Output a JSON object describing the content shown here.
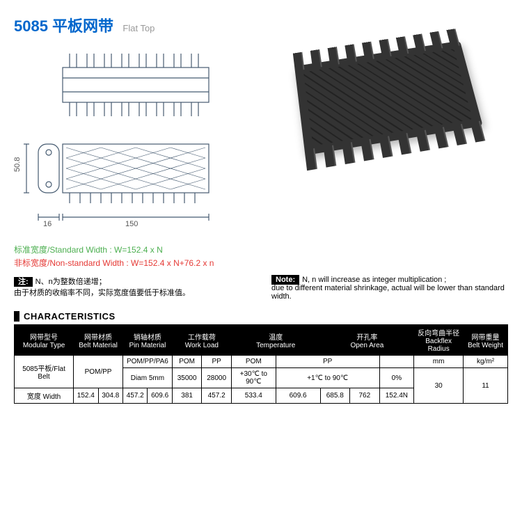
{
  "title": {
    "main": "5085 平板网带",
    "sub": "Flat Top"
  },
  "dimensions": {
    "height": "50.8",
    "small": "16",
    "length": "150"
  },
  "specs": {
    "std_label": "标准宽度/Standard Width : W=152.4 x N",
    "nonstd_label": "非标宽度/Non-standard Width : W=152.4 x N+76.2 x n"
  },
  "notes": {
    "cn_badge": "注:",
    "cn_text1": "N、n为整数倍递增；",
    "cn_text2": "由于材质的收缩率不同，实际宽度值要低于标准值。",
    "en_badge": "Note:",
    "en_text1": "N, n will increase as integer multiplication ;",
    "en_text2": "due to different material shrinkage, actual will be lower than standard width."
  },
  "section": "CHARACTERISTICS",
  "table": {
    "headers": [
      "网带型号\nModular Type",
      "网带材质\nBelt Material",
      "销轴材质\nPin Material",
      "工作载荷\nWork Load",
      "温度\nTemperature",
      "开孔率\nOpen Area",
      "反向弯曲半径\nBackflex Radius",
      "网带重量\nBelt Weight"
    ],
    "r1": {
      "type": "5085平板/Flat Belt",
      "mat": "POM/PP",
      "pin1": "POM/PP/PA6",
      "wl_h1": "POM",
      "wl_h2": "PP",
      "tmp_h1": "POM",
      "tmp_h2": "PP",
      "open_h": "",
      "bfr_u": "mm",
      "bw_u": "kg/m²"
    },
    "r2": {
      "pin2": "Diam 5mm",
      "wl1": "35000",
      "wl2": "28000",
      "tmp1": "+30℃ to 90℃",
      "tmp2": "+1℃ to 90℃",
      "open": "0%",
      "bfr": "30",
      "bw": "11"
    },
    "r3": {
      "width_lbl": "宽度 Width",
      "w1": "152.4",
      "w2": "304.8",
      "w3": "457.2",
      "w4": "609.6",
      "w5": "381",
      "w6": "457.2",
      "w7": "533.4",
      "w8": "609.6",
      "w9": "685.8",
      "w10": "762",
      "w11": "152.4N"
    }
  }
}
